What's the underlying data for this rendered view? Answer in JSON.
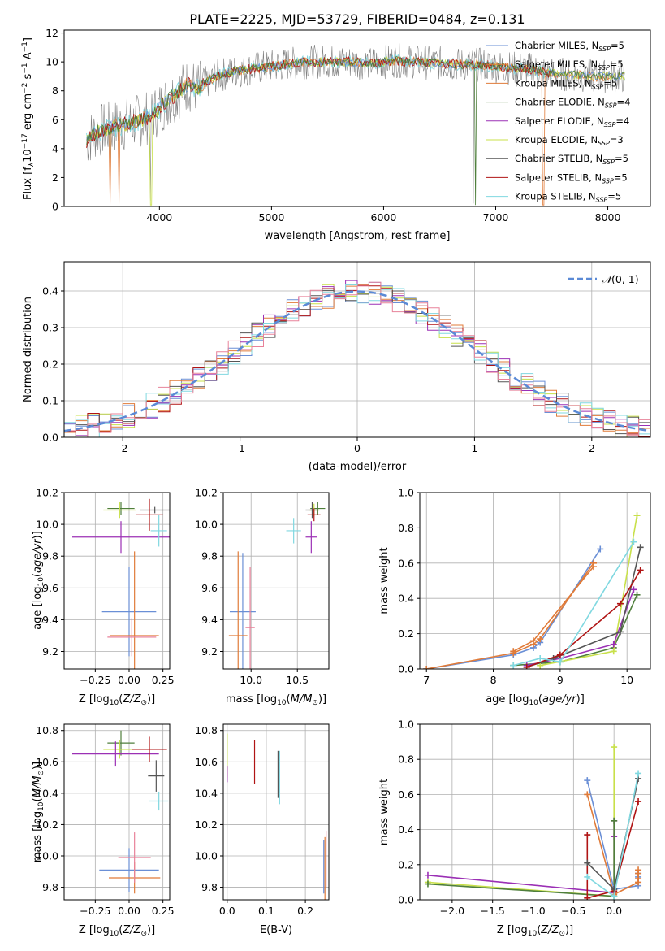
{
  "figure_title": "PLATE=2225, MJD=53729, FIBERID=0484, z=0.131",
  "colors": {
    "Chabrier MILES": "#6a8fd6",
    "Salpeter MILES": "#e07b39",
    "Kroupa MILES": "#e07b39",
    "Chabrier ELODIE": "#4f7f3c",
    "Salpeter ELODIE": "#9b30b5",
    "Kroupa ELODIE": "#c8e04a",
    "Chabrier STELIB": "#555555",
    "Salpeter STELIB": "#b01414",
    "Kroupa STELIB": "#80d8e0",
    "Pink": "#e8829a"
  },
  "chart_data": [
    {
      "id": "spectrum",
      "type": "line",
      "title": "PLATE=2225, MJD=53729, FIBERID=0484, z=0.131",
      "xlabel": "wavelength [Angstrom, rest frame]",
      "ylabel": "Flux [f_λ10^-17 erg cm^-2 s^-1 A^-1]",
      "xlim": [
        3150,
        8380
      ],
      "ylim": [
        0,
        12.2
      ],
      "xticks": [
        4000,
        5000,
        6000,
        7000,
        8000
      ],
      "yticks": [
        0,
        2,
        4,
        6,
        8,
        10,
        12
      ],
      "grid": false,
      "legend_position": "top-right",
      "legend": [
        {
          "name": "Chabrier MILES",
          "sub": "SSP",
          "n": "=5"
        },
        {
          "name": "Salpeter MILES",
          "sub": "SSP",
          "n": "=5"
        },
        {
          "name": "Kroupa MILES",
          "sub": "SSP",
          "n": "=5"
        },
        {
          "name": "Chabrier ELODIE",
          "sub": "SSP",
          "n": "=4"
        },
        {
          "name": "Salpeter ELODIE",
          "sub": "SSP",
          "n": "=4"
        },
        {
          "name": "Kroupa ELODIE",
          "sub": "SSP",
          "n": "=3"
        },
        {
          "name": "Chabrier STELIB",
          "sub": "SSP",
          "n": "=5"
        },
        {
          "name": "Salpeter STELIB",
          "sub": "SSP",
          "n": "=5"
        },
        {
          "name": "Kroupa STELIB",
          "sub": "SSP",
          "n": "=5"
        }
      ],
      "series_shape_wavelength": [
        3350,
        3450,
        3550,
        3650,
        3750,
        3850,
        3950,
        4050,
        4150,
        4250,
        4350,
        4500,
        4700,
        4900,
        5100,
        5300,
        5500,
        5700,
        5900,
        6100,
        6300,
        6500,
        6700,
        6900,
        7100,
        7300,
        7500,
        7700,
        7900,
        8100
      ],
      "series_shape_flux": [
        4.6,
        5.2,
        5.4,
        5.6,
        5.8,
        6.0,
        6.4,
        7.2,
        7.8,
        8.4,
        8.2,
        9.0,
        9.4,
        9.6,
        9.8,
        10.0,
        10.0,
        10.0,
        9.9,
        10.1,
        10.0,
        9.9,
        9.8,
        9.8,
        9.6,
        9.5,
        9.2,
        9.1,
        9.0,
        9.0
      ]
    },
    {
      "id": "residual-histogram",
      "type": "line",
      "xlabel": "(data-model)/error",
      "ylabel": "Normed distribution",
      "xlim": [
        -2.5,
        2.5
      ],
      "ylim": [
        0,
        0.48
      ],
      "xticks": [
        -2,
        -1,
        0,
        1,
        2
      ],
      "yticks": [
        0.0,
        0.1,
        0.2,
        0.3,
        0.4
      ],
      "grid": true,
      "legend_position": "top-right",
      "legend": [
        {
          "name": "N(0,1)",
          "style": "dashed"
        }
      ],
      "bin_width": 0.1,
      "sigma": 1.0
    },
    {
      "id": "age-vs-Z",
      "type": "scatter",
      "xlabel": "Z [log10(Z/Z⊙)]",
      "ylabel": "age [log10(age/yr)]",
      "xlim": [
        -0.48,
        0.3
      ],
      "ylim": [
        9.09,
        10.2
      ],
      "xticks": [
        -0.25,
        0.0,
        0.25
      ],
      "xticklabels": [
        "−0.25",
        "0.00",
        "0.25"
      ],
      "yticks": [
        9.2,
        9.4,
        9.6,
        9.8,
        10.0,
        10.2
      ],
      "grid": true,
      "points": [
        {
          "model": "Chabrier MILES",
          "x": 0.0,
          "xerr": 0.2,
          "y": 9.45,
          "yerr": 0.28
        },
        {
          "model": "Kroupa MILES",
          "x": 0.04,
          "xerr": 0.18,
          "y": 9.3,
          "yerr": 0.53
        },
        {
          "model": "Pink",
          "x": 0.02,
          "xerr": 0.18,
          "y": 9.29,
          "yerr": 0.12
        },
        {
          "model": "Chabrier ELODIE",
          "x": -0.06,
          "xerr": 0.1,
          "y": 10.1,
          "yerr": 0.04
        },
        {
          "model": "Kroupa ELODIE",
          "x": -0.07,
          "xerr": 0.12,
          "y": 10.09,
          "yerr": 0.05
        },
        {
          "model": "Salpeter ELODIE",
          "x": -0.06,
          "xerr": 0.36,
          "y": 9.92,
          "yerr": 0.1
        },
        {
          "model": "Chabrier STELIB",
          "x": 0.19,
          "xerr": 0.11,
          "y": 10.09,
          "yerr": 0.02
        },
        {
          "model": "Salpeter STELIB",
          "x": 0.15,
          "xerr": 0.1,
          "y": 10.06,
          "yerr": 0.1
        },
        {
          "model": "Kroupa STELIB",
          "x": 0.22,
          "xerr": 0.06,
          "y": 9.96,
          "yerr": 0.1
        }
      ]
    },
    {
      "id": "age-vs-mass",
      "type": "scatter",
      "xlabel": "mass [log10(M/M⊙)]",
      "xlim": [
        9.7,
        10.84
      ],
      "ylim": [
        9.09,
        10.2
      ],
      "xticks": [
        10.0,
        10.5
      ],
      "xticklabels": [
        "10.0",
        "10.5"
      ],
      "yticks": [
        9.2,
        9.4,
        9.6,
        9.8,
        10.0,
        10.2
      ],
      "grid": true,
      "points": [
        {
          "model": "Chabrier MILES",
          "x": 9.91,
          "xerr": 0.14,
          "y": 9.45,
          "yerr": 0.37
        },
        {
          "model": "Kroupa MILES",
          "x": 9.86,
          "xerr": 0.1,
          "y": 9.3,
          "yerr": 0.53
        },
        {
          "model": "Pink",
          "x": 9.99,
          "xerr": 0.05,
          "y": 9.35,
          "yerr": 0.38
        },
        {
          "model": "Chabrier ELODIE",
          "x": 10.72,
          "xerr": 0.08,
          "y": 10.1,
          "yerr": 0.04
        },
        {
          "model": "Kroupa ELODIE",
          "x": 10.68,
          "xerr": 0.06,
          "y": 10.09,
          "yerr": 0.04
        },
        {
          "model": "Salpeter ELODIE",
          "x": 10.65,
          "xerr": 0.06,
          "y": 9.92,
          "yerr": 0.1
        },
        {
          "model": "Chabrier STELIB",
          "x": 10.66,
          "xerr": 0.07,
          "y": 10.09,
          "yerr": 0.05
        },
        {
          "model": "Salpeter STELIB",
          "x": 10.68,
          "xerr": 0.07,
          "y": 10.06,
          "yerr": 0.04
        },
        {
          "model": "Kroupa STELIB",
          "x": 10.46,
          "xerr": 0.08,
          "y": 9.96,
          "yerr": 0.08
        }
      ]
    },
    {
      "id": "mass-weight-vs-age",
      "type": "line",
      "xlabel": "age [log10(age/yr)]",
      "ylabel": "mass weight",
      "xlim": [
        6.9,
        10.35
      ],
      "ylim": [
        0,
        1.0
      ],
      "xticks": [
        7,
        8,
        9,
        10
      ],
      "yticks": [
        0.0,
        0.2,
        0.4,
        0.6,
        0.8,
        1.0
      ],
      "grid": true,
      "series": [
        {
          "model": "Chabrier MILES",
          "x": [
            7.0,
            8.3,
            8.6,
            8.7,
            9.6
          ],
          "y": [
            0.0,
            0.08,
            0.12,
            0.15,
            0.68
          ]
        },
        {
          "model": "Salpeter MILES",
          "x": [
            7.0,
            8.3,
            8.6,
            8.7,
            9.5
          ],
          "y": [
            0.0,
            0.09,
            0.14,
            0.17,
            0.6
          ]
        },
        {
          "model": "Chabrier ELODIE",
          "x": [
            8.3,
            9.0,
            9.8,
            10.15
          ],
          "y": [
            0.02,
            0.04,
            0.12,
            0.42
          ]
        },
        {
          "model": "Kroupa ELODIE",
          "x": [
            8.7,
            9.8,
            10.15
          ],
          "y": [
            0.02,
            0.1,
            0.87
          ]
        },
        {
          "model": "Salpeter ELODIE",
          "x": [
            8.5,
            9.0,
            9.8,
            10.1
          ],
          "y": [
            0.02,
            0.06,
            0.14,
            0.45
          ]
        },
        {
          "model": "Chabrier STELIB",
          "x": [
            8.5,
            8.9,
            9.9,
            10.2
          ],
          "y": [
            0.01,
            0.06,
            0.21,
            0.69
          ]
        },
        {
          "model": "Salpeter STELIB",
          "x": [
            8.5,
            9.0,
            9.9,
            10.2
          ],
          "y": [
            0.01,
            0.08,
            0.37,
            0.56
          ]
        },
        {
          "model": "Kroupa STELIB",
          "x": [
            8.3,
            8.7,
            9.0,
            10.1
          ],
          "y": [
            0.02,
            0.06,
            0.04,
            0.72
          ]
        },
        {
          "model": "Kroupa MILES",
          "x": [
            8.3,
            8.6,
            9.5
          ],
          "y": [
            0.1,
            0.16,
            0.58
          ]
        }
      ]
    },
    {
      "id": "mass-vs-Z",
      "type": "scatter",
      "xlabel": "Z [log10(Z/Z⊙)]",
      "ylabel": "mass [log10(M/M⊙)]",
      "xlim": [
        -0.48,
        0.3
      ],
      "ylim": [
        9.72,
        10.84
      ],
      "xticks": [
        -0.25,
        0.0,
        0.25
      ],
      "xticklabels": [
        "−0.25",
        "0.00",
        "0.25"
      ],
      "yticks": [
        9.8,
        10.0,
        10.2,
        10.4,
        10.6,
        10.8
      ],
      "grid": true,
      "points": [
        {
          "model": "Chabrier MILES",
          "x": 0.0,
          "xerr": 0.22,
          "y": 9.91,
          "yerr": 0.14
        },
        {
          "model": "Kroupa MILES",
          "x": 0.04,
          "xerr": 0.19,
          "y": 9.86,
          "yerr": 0.1
        },
        {
          "model": "Pink",
          "x": 0.04,
          "xerr": 0.12,
          "y": 9.99,
          "yerr": 0.16
        },
        {
          "model": "Chabrier ELODIE",
          "x": -0.06,
          "xerr": 0.1,
          "y": 10.72,
          "yerr": 0.08
        },
        {
          "model": "Kroupa ELODIE",
          "x": -0.07,
          "xerr": 0.12,
          "y": 10.68,
          "yerr": 0.06
        },
        {
          "model": "Salpeter ELODIE",
          "x": -0.1,
          "xerr": 0.32,
          "y": 10.65,
          "yerr": 0.08
        },
        {
          "model": "Chabrier STELIB",
          "x": 0.2,
          "xerr": 0.06,
          "y": 10.51,
          "yerr": 0.1
        },
        {
          "model": "Salpeter STELIB",
          "x": 0.15,
          "xerr": 0.13,
          "y": 10.68,
          "yerr": 0.08
        },
        {
          "model": "Kroupa STELIB",
          "x": 0.22,
          "xerr": 0.07,
          "y": 10.35,
          "yerr": 0.06
        }
      ]
    },
    {
      "id": "mass-vs-EBV",
      "type": "scatter",
      "xlabel": "E(B-V)",
      "xlim": [
        -0.01,
        0.26
      ],
      "ylim": [
        9.72,
        10.84
      ],
      "xticks": [
        0.0,
        0.1,
        0.2
      ],
      "xticklabels": [
        "0.0",
        "0.1",
        "0.2"
      ],
      "yticks": [
        9.8,
        10.0,
        10.2,
        10.4,
        10.6,
        10.8
      ],
      "grid": true,
      "points": [
        {
          "model": "Kroupa ELODIE",
          "x": 0.0,
          "y": 10.64,
          "yerr": 0.14
        },
        {
          "model": "Salpeter ELODIE",
          "x": 0.0,
          "y": 10.52,
          "yerr": 0.05
        },
        {
          "model": "Salpeter STELIB",
          "x": 0.07,
          "y": 10.6,
          "yerr": 0.14
        },
        {
          "model": "Chabrier STELIB",
          "x": 0.13,
          "y": 10.52,
          "yerr": 0.15
        },
        {
          "model": "Kroupa STELIB",
          "x": 0.134,
          "y": 10.5,
          "yerr": 0.17
        },
        {
          "model": "Chabrier MILES",
          "x": 0.247,
          "y": 9.93,
          "yerr": 0.17
        },
        {
          "model": "Kroupa MILES",
          "x": 0.25,
          "y": 9.92,
          "yerr": 0.2
        },
        {
          "model": "Pink",
          "x": 0.253,
          "y": 9.98,
          "yerr": 0.18
        }
      ]
    },
    {
      "id": "mass-weight-vs-Z",
      "type": "line",
      "xlabel": "Z [log10(Z/Z⊙)]",
      "ylabel": "mass weight",
      "xlim": [
        -2.4,
        0.45
      ],
      "ylim": [
        0,
        1.0
      ],
      "xticks": [
        -2.0,
        -1.5,
        -1.0,
        -0.5,
        0.0
      ],
      "xticklabels": [
        "−2.0",
        "−1.5",
        "−1.0",
        "−0.5",
        "0.0"
      ],
      "yticks": [
        0.0,
        0.2,
        0.4,
        0.6,
        0.8,
        1.0
      ],
      "grid": true,
      "series": [
        {
          "model": "Salpeter ELODIE",
          "x": [
            -2.3,
            0.0,
            0.0,
            0.0
          ],
          "y": [
            0.14,
            0.04,
            0.45,
            0.36
          ]
        },
        {
          "model": "Kroupa ELODIE",
          "x": [
            -2.3,
            0.0,
            0.0
          ],
          "y": [
            0.1,
            0.02,
            0.87
          ]
        },
        {
          "model": "Chabrier ELODIE",
          "x": [
            -2.3,
            0.0,
            0.0
          ],
          "y": [
            0.09,
            0.02,
            0.45
          ]
        },
        {
          "model": "Chabrier MILES",
          "x": [
            -0.33,
            0.0,
            0.3,
            0.3,
            0.3
          ],
          "y": [
            0.68,
            0.06,
            0.08,
            0.13,
            0.15
          ]
        },
        {
          "model": "Kroupa MILES",
          "x": [
            -0.33,
            0.0,
            0.3,
            0.3,
            0.3,
            0.3
          ],
          "y": [
            0.6,
            0.03,
            0.1,
            0.12,
            0.15,
            0.17
          ]
        },
        {
          "model": "Salpeter STELIB",
          "x": [
            -0.33,
            -0.33,
            0.0,
            0.3
          ],
          "y": [
            0.37,
            0.01,
            0.05,
            0.56
          ]
        },
        {
          "model": "Chabrier STELIB",
          "x": [
            -0.33,
            0.0,
            0.3
          ],
          "y": [
            0.21,
            0.06,
            0.69
          ]
        },
        {
          "model": "Kroupa STELIB",
          "x": [
            -0.33,
            0.0,
            0.3
          ],
          "y": [
            0.13,
            0.02,
            0.72
          ]
        }
      ]
    }
  ]
}
